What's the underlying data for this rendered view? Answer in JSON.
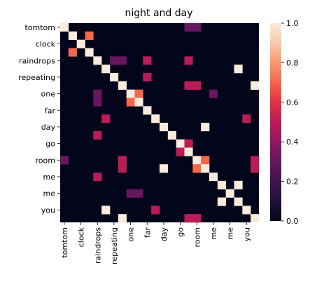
{
  "chart_data": {
    "type": "heatmap",
    "title": "night and day",
    "labels": [
      "tomtom",
      "tomtom",
      "clock",
      "clock",
      "raindrops",
      "raindrops",
      "repeating",
      "repeating",
      "one",
      "one",
      "far",
      "far",
      "day",
      "day",
      "go",
      "go",
      "room",
      "room",
      "me",
      "me",
      "me",
      "me",
      "you",
      "you"
    ],
    "colorbar": {
      "min": 0.0,
      "max": 1.0,
      "ticks": [
        "0.0",
        "0.2",
        "0.4",
        "0.6",
        "0.8",
        "1.0"
      ],
      "colormap": "rocket"
    },
    "cells": [
      [
        0,
        0,
        1.0
      ],
      [
        0,
        15,
        0.3
      ],
      [
        0,
        16,
        0.3
      ],
      [
        1,
        1,
        1.0
      ],
      [
        1,
        3,
        0.7
      ],
      [
        2,
        2,
        1.0
      ],
      [
        3,
        1,
        0.7
      ],
      [
        3,
        3,
        1.0
      ],
      [
        4,
        4,
        1.0
      ],
      [
        4,
        6,
        0.3
      ],
      [
        4,
        7,
        0.3
      ],
      [
        4,
        10,
        0.5
      ],
      [
        4,
        15,
        0.5
      ],
      [
        5,
        5,
        1.0
      ],
      [
        5,
        21,
        1.0
      ],
      [
        6,
        6,
        1.0
      ],
      [
        6,
        10,
        0.5
      ],
      [
        7,
        7,
        1.0
      ],
      [
        7,
        15,
        0.5
      ],
      [
        7,
        16,
        0.5
      ],
      [
        7,
        23,
        1.0
      ],
      [
        8,
        4,
        0.3
      ],
      [
        8,
        8,
        1.0
      ],
      [
        8,
        9,
        0.7
      ],
      [
        8,
        18,
        0.3
      ],
      [
        9,
        4,
        0.3
      ],
      [
        9,
        8,
        0.7
      ],
      [
        9,
        9,
        1.0
      ],
      [
        10,
        10,
        1.0
      ],
      [
        11,
        5,
        0.5
      ],
      [
        11,
        11,
        1.0
      ],
      [
        11,
        22,
        0.5
      ],
      [
        12,
        12,
        1.0
      ],
      [
        12,
        17,
        1.0
      ],
      [
        13,
        4,
        0.5
      ],
      [
        13,
        13,
        1.0
      ],
      [
        14,
        14,
        1.0
      ],
      [
        14,
        15,
        0.5
      ],
      [
        15,
        14,
        0.5
      ],
      [
        15,
        15,
        1.0
      ],
      [
        16,
        0,
        0.3
      ],
      [
        16,
        7,
        0.5
      ],
      [
        16,
        16,
        1.0
      ],
      [
        16,
        17,
        0.7
      ],
      [
        16,
        23,
        0.5
      ],
      [
        17,
        7,
        0.5
      ],
      [
        17,
        12,
        1.0
      ],
      [
        17,
        16,
        0.7
      ],
      [
        17,
        17,
        1.0
      ],
      [
        17,
        23,
        0.5
      ],
      [
        18,
        4,
        0.5
      ],
      [
        18,
        18,
        1.0
      ],
      [
        19,
        19,
        1.0
      ],
      [
        19,
        21,
        1.0
      ],
      [
        20,
        8,
        0.3
      ],
      [
        20,
        9,
        0.3
      ],
      [
        20,
        20,
        1.0
      ],
      [
        21,
        19,
        1.0
      ],
      [
        21,
        21,
        1.0
      ],
      [
        22,
        5,
        1.0
      ],
      [
        22,
        11,
        0.5
      ],
      [
        22,
        22,
        1.0
      ],
      [
        23,
        7,
        1.0
      ],
      [
        23,
        15,
        0.5
      ],
      [
        23,
        16,
        0.5
      ],
      [
        23,
        23,
        1.0
      ]
    ]
  }
}
